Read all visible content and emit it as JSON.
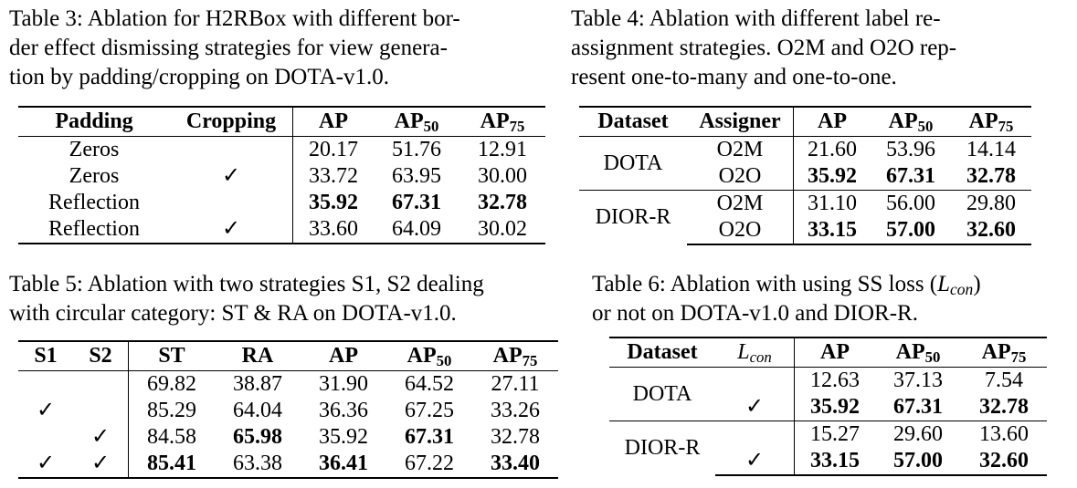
{
  "t3": {
    "caption": [
      "Table 3: Ablation for H2RBox with different bor-",
      "der effect dismissing strategies for view genera-",
      "tion by padding/cropping on DOTA-v1.0."
    ],
    "headers": {
      "padding": "Padding",
      "cropping": "Cropping",
      "ap": "AP",
      "ap50": "AP",
      "ap75": "AP",
      "sub50": "50",
      "sub75": "75"
    },
    "rows": [
      {
        "padding": "Zeros",
        "cropping": "",
        "ap": "20.17",
        "ap50": "51.76",
        "ap75": "12.91"
      },
      {
        "padding": "Zeros",
        "cropping": "✓",
        "ap": "33.72",
        "ap50": "63.95",
        "ap75": "30.00"
      },
      {
        "padding": "Reflection",
        "cropping": "",
        "ap": "35.92",
        "ap50": "67.31",
        "ap75": "32.78"
      },
      {
        "padding": "Reflection",
        "cropping": "✓",
        "ap": "33.60",
        "ap50": "64.09",
        "ap75": "30.02"
      }
    ]
  },
  "t4": {
    "caption": [
      "Table 4:  Ablation with different label re-",
      "assignment strategies.  O2M and O2O rep-",
      "resent one-to-many and one-to-one."
    ],
    "headers": {
      "dataset": "Dataset",
      "assigner": "Assigner",
      "ap": "AP",
      "ap50": "AP",
      "ap75": "AP",
      "sub50": "50",
      "sub75": "75"
    },
    "groups": [
      {
        "dataset": "DOTA",
        "rows": [
          {
            "assigner": "O2M",
            "ap": "21.60",
            "ap50": "53.96",
            "ap75": "14.14"
          },
          {
            "assigner": "O2O",
            "ap": "35.92",
            "ap50": "67.31",
            "ap75": "32.78"
          }
        ]
      },
      {
        "dataset": "DIOR-R",
        "rows": [
          {
            "assigner": "O2M",
            "ap": "31.10",
            "ap50": "56.00",
            "ap75": "29.80"
          },
          {
            "assigner": "O2O",
            "ap": "33.15",
            "ap50": "57.00",
            "ap75": "32.60"
          }
        ]
      }
    ]
  },
  "t5": {
    "caption": [
      "Table 5: Ablation with two strategies S1, S2 dealing",
      "with circular category: ST & RA on DOTA-v1.0."
    ],
    "headers": {
      "s1": "S1",
      "s2": "S2",
      "st": "ST",
      "ra": "RA",
      "ap": "AP",
      "ap50": "AP",
      "ap75": "AP",
      "sub50": "50",
      "sub75": "75"
    },
    "rows": [
      {
        "s1": "",
        "s2": "",
        "st": "69.82",
        "ra": "38.87",
        "ap": "31.90",
        "ap50": "64.52",
        "ap75": "27.11"
      },
      {
        "s1": "✓",
        "s2": "",
        "st": "85.29",
        "ra": "64.04",
        "ap": "36.36",
        "ap50": "67.25",
        "ap75": "33.26"
      },
      {
        "s1": "",
        "s2": "✓",
        "st": "84.58",
        "ra": "65.98",
        "ap": "35.92",
        "ap50": "67.31",
        "ap75": "32.78"
      },
      {
        "s1": "✓",
        "s2": "✓",
        "st": "85.41",
        "ra": "63.38",
        "ap": "36.41",
        "ap50": "67.22",
        "ap75": "33.40"
      }
    ]
  },
  "t6": {
    "caption_a": "Table 6: Ablation with using SS loss (",
    "caption_L": "L",
    "caption_sub": "con",
    "caption_b": ")",
    "caption_line2": "or not on DOTA-v1.0 and DIOR-R.",
    "headers": {
      "dataset": "Dataset",
      "lcon": "L",
      "lcon_sub": "con",
      "ap": "AP",
      "ap50": "AP",
      "ap75": "AP",
      "sub50": "50",
      "sub75": "75"
    },
    "groups": [
      {
        "dataset": "DOTA",
        "rows": [
          {
            "lcon": "",
            "ap": "12.63",
            "ap50": "37.13",
            "ap75": "7.54"
          },
          {
            "lcon": "✓",
            "ap": "35.92",
            "ap50": "67.31",
            "ap75": "32.78"
          }
        ]
      },
      {
        "dataset": "DIOR-R",
        "rows": [
          {
            "lcon": "",
            "ap": "15.27",
            "ap50": "29.60",
            "ap75": "13.60"
          },
          {
            "lcon": "✓",
            "ap": "33.15",
            "ap50": "57.00",
            "ap75": "32.60"
          }
        ]
      }
    ]
  }
}
